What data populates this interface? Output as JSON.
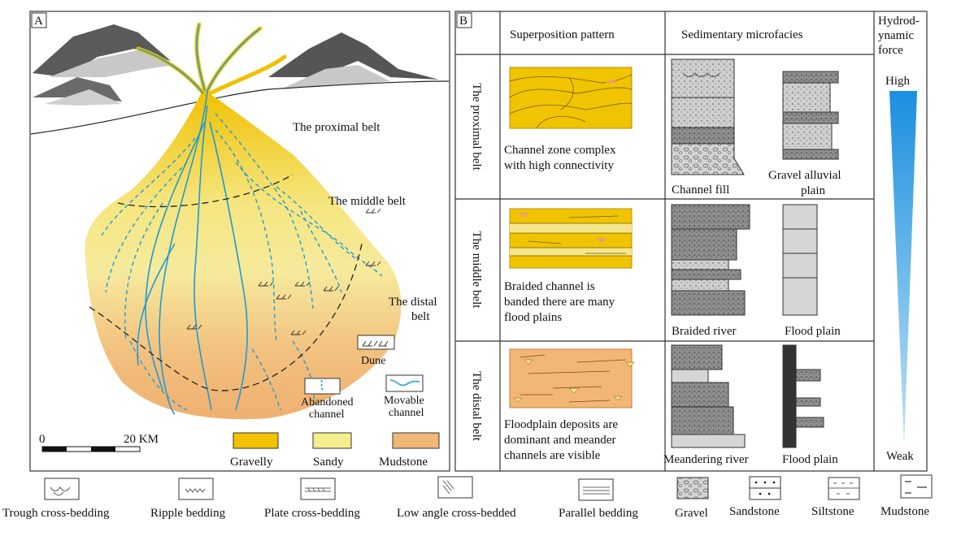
{
  "panel_a": {
    "label": "A",
    "proximal_belt": "The proximal belt",
    "middle_belt": "The middle belt",
    "distal_belt": [
      "The distal",
      "belt"
    ],
    "legend": {
      "dune": "Dune",
      "abandoned_channel": [
        "Abandoned",
        "channel"
      ],
      "movable_channel": [
        "Movable",
        "channel"
      ],
      "scale": [
        "0",
        "20 KM"
      ],
      "swatches": [
        {
          "label": "Gravelly",
          "color": "#f2c200"
        },
        {
          "label": "Sandy",
          "color": "#f4ef8c"
        },
        {
          "label": "Mudstone",
          "color": "#f1b777"
        }
      ]
    },
    "channel_color": "#1e9ad6"
  },
  "panel_b": {
    "label": "B",
    "headers": {
      "pattern": "Superposition pattern",
      "microfacies": "Sedimentary microfacies",
      "hydro": [
        "Hydrod-",
        "ynamic",
        "force"
      ]
    },
    "rows": [
      {
        "belt": "The proximal belt",
        "description": [
          "Channel zone complex",
          "with high connectivity"
        ],
        "facies": [
          "Channel fill",
          "Gravel alluvial",
          "plain"
        ]
      },
      {
        "belt": "The middle belt",
        "description": [
          "Braided channel is",
          "banded there are many",
          "flood plains"
        ],
        "facies": [
          "Braided river",
          "Flood plain"
        ]
      },
      {
        "belt": "The distal belt",
        "description": [
          "Floodplain deposits are",
          "dominant and meander",
          "channels are visible"
        ],
        "facies": [
          "Meandering river",
          "Flood plain"
        ]
      }
    ],
    "hydro_high": "High",
    "hydro_low": "Weak"
  },
  "bottom_legend": [
    "Trough  cross-bedding",
    "Ripple bedding",
    "Plate cross-bedding",
    "Low angle cross-bedded",
    "Parallel bedding",
    "Gravel",
    "Sandstone",
    "Siltstone",
    "Mudstone"
  ]
}
